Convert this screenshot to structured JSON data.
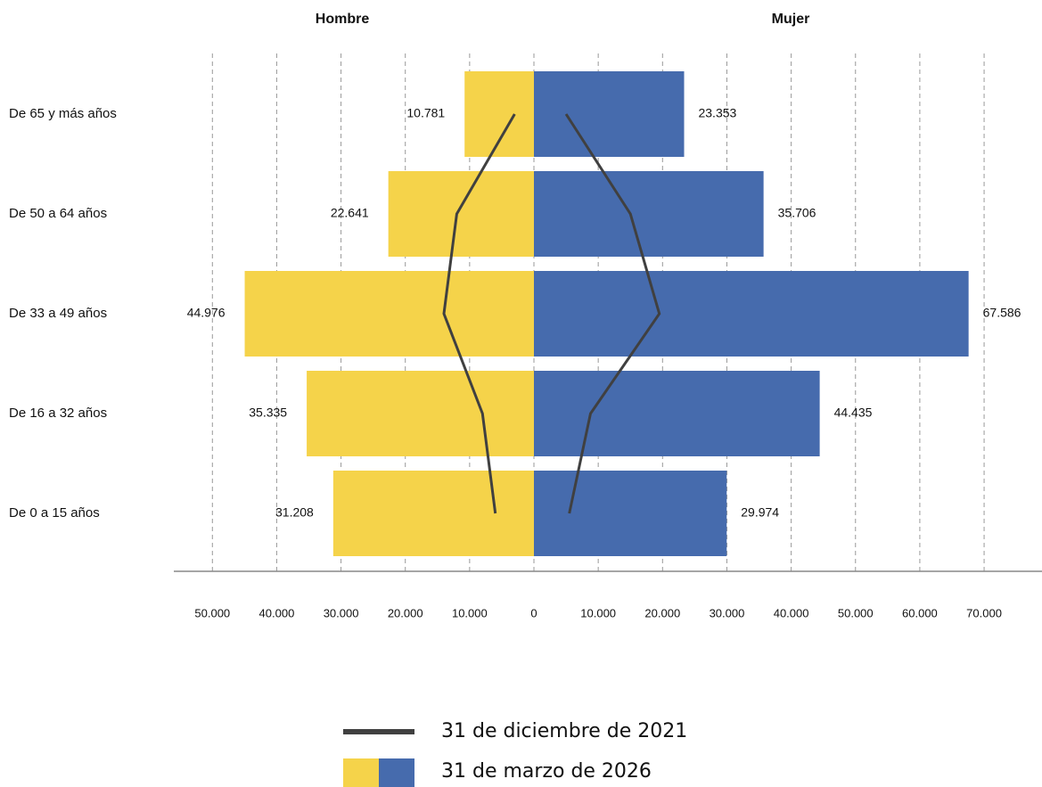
{
  "chart_data": {
    "type": "pyramid",
    "categories": [
      "De 65 y más años",
      "De 50 a 64 años",
      "De 33 a 49 años",
      "De 16 a 32 años",
      "De 0 a 15 años"
    ],
    "line_color": "#404040",
    "legend": {
      "line": "31 de diciembre de 2021",
      "bars": "31 de marzo de 2026"
    },
    "series": [
      {
        "name": "Hombre",
        "side": "left",
        "color": "#f5d34a",
        "values": [
          10781,
          22641,
          44976,
          35335,
          31208
        ],
        "value_labels": [
          "10.781",
          "22.641",
          "44.976",
          "35.335",
          "31.208"
        ],
        "line_values": [
          3000,
          12000,
          14000,
          8000,
          6000
        ],
        "xlim": [
          0,
          56000
        ],
        "xticks": [
          {
            "value": 10000,
            "label": "10.000"
          },
          {
            "value": 20000,
            "label": "20.000"
          },
          {
            "value": 30000,
            "label": "30.000"
          },
          {
            "value": 40000,
            "label": "40.000"
          },
          {
            "value": 50000,
            "label": "50.000"
          }
        ]
      },
      {
        "name": "Mujer",
        "side": "right",
        "color": "#466bad",
        "values": [
          23353,
          35706,
          67586,
          44435,
          29974
        ],
        "value_labels": [
          "23.353",
          "35.706",
          "67.586",
          "44.435",
          "29.974"
        ],
        "line_values": [
          5000,
          15000,
          19500,
          8800,
          5500
        ],
        "xlim": [
          0,
          79000
        ],
        "xticks": [
          0,
          {
            "value": 10000,
            "label": "10.000"
          },
          {
            "value": 20000,
            "label": "20.000"
          },
          {
            "value": 30000,
            "label": "30.000"
          },
          {
            "value": 40000,
            "label": "40.000"
          },
          {
            "value": 50000,
            "label": "50.000"
          },
          {
            "value": 60000,
            "label": "60.000"
          },
          {
            "value": 70000,
            "label": "70.000"
          }
        ]
      }
    ]
  }
}
